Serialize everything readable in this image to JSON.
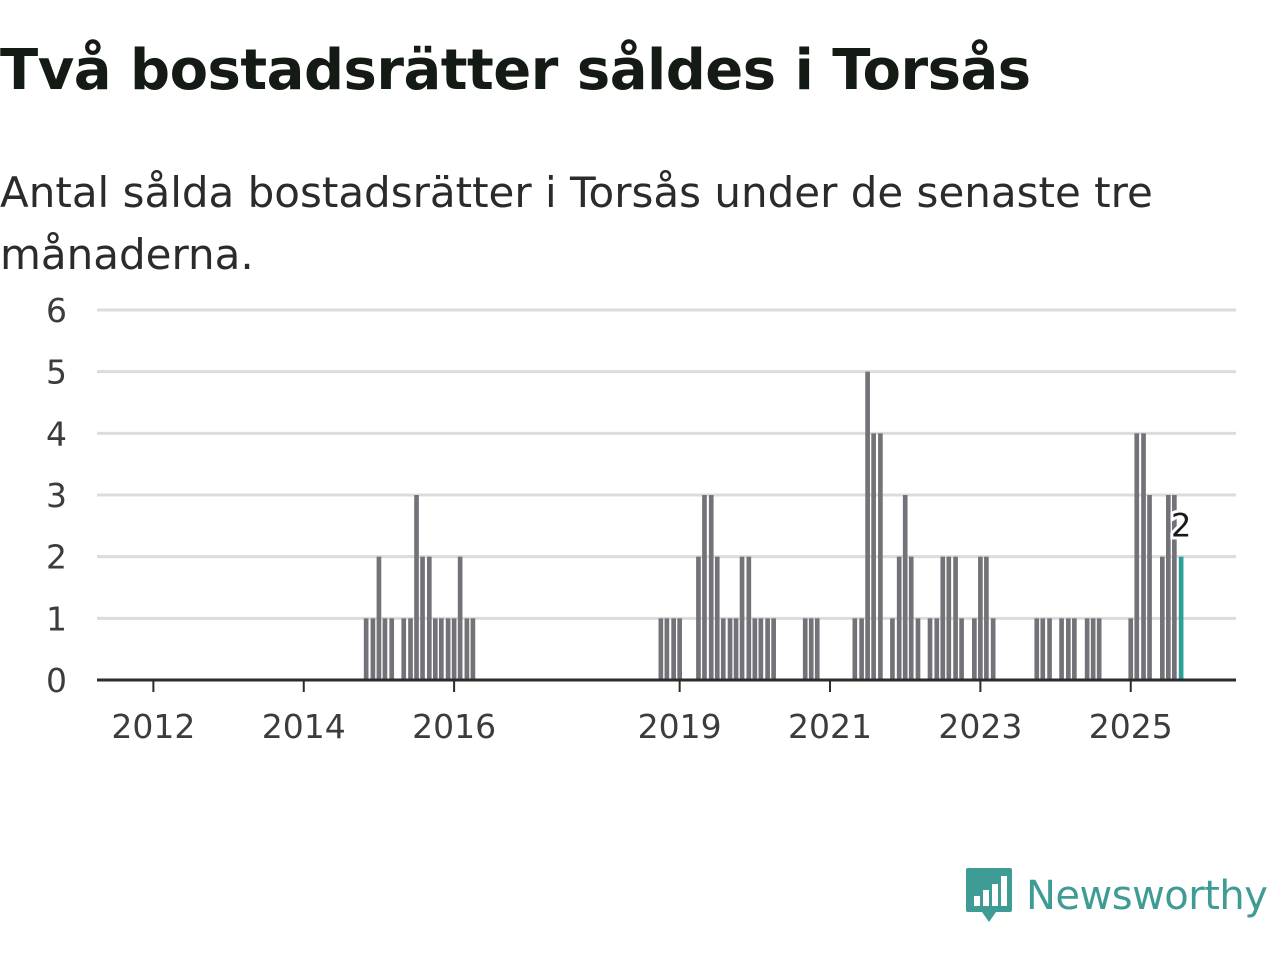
{
  "title": "Två bostadsrätter såldes i Torsås",
  "subtitle": "Antal sålda bostadsrätter i Torsås under de senaste tre månaderna.",
  "brand": {
    "name": "Newsworthy",
    "icon": "newsworthy-logo-icon"
  },
  "colors": {
    "bar": "#727278",
    "highlight": "#2aa198",
    "grid": "#dcdcdc",
    "axis": "#2b2b2b",
    "brand": "#3f9c95"
  },
  "chart_data": {
    "type": "bar",
    "title": "Två bostadsrätter såldes i Torsås",
    "xlabel": "",
    "ylabel": "",
    "ylim": [
      0,
      6
    ],
    "yticks": [
      "0",
      "1",
      "2",
      "3",
      "4",
      "5",
      "6"
    ],
    "xticks": [
      {
        "label": "2012",
        "t": 2012.0
      },
      {
        "label": "2014",
        "t": 2014.0
      },
      {
        "label": "2016",
        "t": 2016.0
      },
      {
        "label": "2019",
        "t": 2019.0
      },
      {
        "label": "2021",
        "t": 2021.0
      },
      {
        "label": "2023",
        "t": 2023.0
      },
      {
        "label": "2025",
        "t": 2025.0
      }
    ],
    "xrange": [
      2011.25,
      2026.4
    ],
    "bar_unit": "month",
    "highlight_label": "2",
    "values": [
      {
        "t": 2014.83,
        "v": 1
      },
      {
        "t": 2014.92,
        "v": 1
      },
      {
        "t": 2015.0,
        "v": 2
      },
      {
        "t": 2015.08,
        "v": 1
      },
      {
        "t": 2015.17,
        "v": 1
      },
      {
        "t": 2015.33,
        "v": 1
      },
      {
        "t": 2015.42,
        "v": 1
      },
      {
        "t": 2015.5,
        "v": 3
      },
      {
        "t": 2015.58,
        "v": 2
      },
      {
        "t": 2015.67,
        "v": 2
      },
      {
        "t": 2015.75,
        "v": 1
      },
      {
        "t": 2015.83,
        "v": 1
      },
      {
        "t": 2015.92,
        "v": 1
      },
      {
        "t": 2016.0,
        "v": 1
      },
      {
        "t": 2016.08,
        "v": 2
      },
      {
        "t": 2016.17,
        "v": 1
      },
      {
        "t": 2016.25,
        "v": 1
      },
      {
        "t": 2018.75,
        "v": 1
      },
      {
        "t": 2018.83,
        "v": 1
      },
      {
        "t": 2018.92,
        "v": 1
      },
      {
        "t": 2019.0,
        "v": 1
      },
      {
        "t": 2019.25,
        "v": 2
      },
      {
        "t": 2019.33,
        "v": 3
      },
      {
        "t": 2019.42,
        "v": 3
      },
      {
        "t": 2019.5,
        "v": 2
      },
      {
        "t": 2019.58,
        "v": 1
      },
      {
        "t": 2019.67,
        "v": 1
      },
      {
        "t": 2019.75,
        "v": 1
      },
      {
        "t": 2019.83,
        "v": 2
      },
      {
        "t": 2019.92,
        "v": 2
      },
      {
        "t": 2020.0,
        "v": 1
      },
      {
        "t": 2020.08,
        "v": 1
      },
      {
        "t": 2020.17,
        "v": 1
      },
      {
        "t": 2020.25,
        "v": 1
      },
      {
        "t": 2020.67,
        "v": 1
      },
      {
        "t": 2020.75,
        "v": 1
      },
      {
        "t": 2020.83,
        "v": 1
      },
      {
        "t": 2021.33,
        "v": 1
      },
      {
        "t": 2021.42,
        "v": 1
      },
      {
        "t": 2021.5,
        "v": 5
      },
      {
        "t": 2021.58,
        "v": 4
      },
      {
        "t": 2021.67,
        "v": 4
      },
      {
        "t": 2021.83,
        "v": 1
      },
      {
        "t": 2021.92,
        "v": 2
      },
      {
        "t": 2022.0,
        "v": 3
      },
      {
        "t": 2022.08,
        "v": 2
      },
      {
        "t": 2022.17,
        "v": 1
      },
      {
        "t": 2022.33,
        "v": 1
      },
      {
        "t": 2022.42,
        "v": 1
      },
      {
        "t": 2022.5,
        "v": 2
      },
      {
        "t": 2022.58,
        "v": 2
      },
      {
        "t": 2022.67,
        "v": 2
      },
      {
        "t": 2022.75,
        "v": 1
      },
      {
        "t": 2022.92,
        "v": 1
      },
      {
        "t": 2023.0,
        "v": 2
      },
      {
        "t": 2023.08,
        "v": 2
      },
      {
        "t": 2023.17,
        "v": 1
      },
      {
        "t": 2023.75,
        "v": 1
      },
      {
        "t": 2023.83,
        "v": 1
      },
      {
        "t": 2023.92,
        "v": 1
      },
      {
        "t": 2024.08,
        "v": 1
      },
      {
        "t": 2024.17,
        "v": 1
      },
      {
        "t": 2024.25,
        "v": 1
      },
      {
        "t": 2024.42,
        "v": 1
      },
      {
        "t": 2024.5,
        "v": 1
      },
      {
        "t": 2024.58,
        "v": 1
      },
      {
        "t": 2025.0,
        "v": 1
      },
      {
        "t": 2025.08,
        "v": 4
      },
      {
        "t": 2025.17,
        "v": 4
      },
      {
        "t": 2025.25,
        "v": 3
      },
      {
        "t": 2025.42,
        "v": 2
      },
      {
        "t": 2025.5,
        "v": 3
      },
      {
        "t": 2025.58,
        "v": 3
      },
      {
        "t": 2025.67,
        "v": 2,
        "highlight": true
      }
    ]
  }
}
